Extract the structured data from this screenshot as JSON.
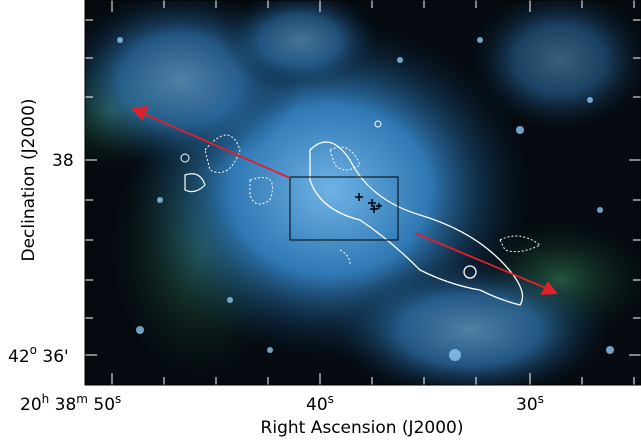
{
  "axes": {
    "x_label": "Right Ascension (J2000)",
    "y_label": "Declination (J2000)",
    "x_ticks": [
      [
        {
          "text": "20",
          "sup": "h"
        },
        {
          "text": "38",
          "sup": "m"
        },
        {
          "text": "50",
          "sup": "s"
        }
      ],
      [
        {
          "text": "40",
          "sup": "s"
        }
      ],
      [
        {
          "text": "30",
          "sup": "s"
        }
      ]
    ],
    "y_ticks": [
      [
        {
          "text": "38"
        }
      ],
      [
        {
          "text": "42",
          "sup": "o"
        },
        {
          "text": "36'"
        }
      ]
    ]
  }
}
